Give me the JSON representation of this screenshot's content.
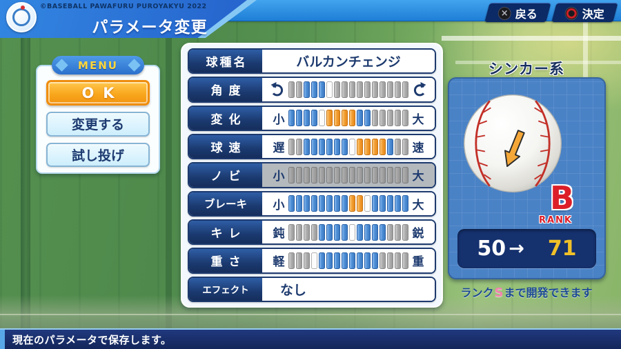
{
  "header": {
    "brand": "©BASEBALL PAWAFURU PUROYAKYU 2022",
    "title": "パラメータ変更",
    "buttons": [
      {
        "icon": "cross-button-icon",
        "label": "戻る"
      },
      {
        "icon": "circle-button-icon",
        "label": "決定"
      }
    ]
  },
  "menu": {
    "title": "MENU",
    "items": [
      {
        "label": "OK",
        "state": "selected"
      },
      {
        "label": "変更する",
        "state": "normal"
      },
      {
        "label": "試し投げ",
        "state": "normal"
      }
    ]
  },
  "parameters": {
    "rows": [
      {
        "label": "球種名",
        "type": "text",
        "value": "バルカンチェンジ",
        "align": "center"
      },
      {
        "label": "角度",
        "type": "gauge",
        "min_icon": "rotate-ccw-icon",
        "max_icon": "rotate-cw-icon",
        "segments": [
          "g",
          "g",
          "b",
          "b",
          "b",
          "w",
          "g",
          "g",
          "g",
          "g",
          "g",
          "g",
          "g",
          "g",
          "g",
          "g"
        ]
      },
      {
        "label": "変化",
        "type": "gauge",
        "min": "小",
        "max": "大",
        "segments": [
          "b",
          "b",
          "b",
          "b",
          "w",
          "o",
          "o",
          "o",
          "o",
          "b",
          "b",
          "g",
          "g",
          "g",
          "g",
          "g"
        ]
      },
      {
        "label": "球速",
        "type": "gauge",
        "min": "遅",
        "max": "速",
        "segments": [
          "g",
          "g",
          "b",
          "b",
          "b",
          "b",
          "b",
          "b",
          "w",
          "o",
          "o",
          "o",
          "o",
          "b",
          "g",
          "g"
        ]
      },
      {
        "label": "ノビ",
        "type": "gauge",
        "min": "小",
        "max": "大",
        "disabled": true,
        "segments": [
          "d",
          "d",
          "d",
          "d",
          "d",
          "d",
          "d",
          "d",
          "d",
          "d",
          "d",
          "d",
          "d",
          "d",
          "d",
          "d"
        ]
      },
      {
        "label": "ブレーキ",
        "type": "gauge",
        "min": "小",
        "max": "大",
        "segments": [
          "b",
          "b",
          "b",
          "b",
          "b",
          "b",
          "b",
          "b",
          "o",
          "o",
          "w",
          "b",
          "b",
          "b",
          "b",
          "b"
        ]
      },
      {
        "label": "キレ",
        "type": "gauge",
        "min": "鈍",
        "max": "鋭",
        "segments": [
          "g",
          "g",
          "g",
          "g",
          "b",
          "b",
          "b",
          "b",
          "w",
          "b",
          "b",
          "b",
          "b",
          "g",
          "g",
          "g"
        ]
      },
      {
        "label": "重さ",
        "type": "gauge",
        "min": "軽",
        "max": "重",
        "segments": [
          "g",
          "g",
          "g",
          "w",
          "b",
          "b",
          "b",
          "b",
          "b",
          "b",
          "b",
          "b",
          "g",
          "g",
          "g",
          "g"
        ]
      },
      {
        "label": "エフェクト",
        "type": "text",
        "value": "なし",
        "align": "left"
      }
    ]
  },
  "rank": {
    "category": "シンカー系",
    "letter": "B",
    "word": "RANK",
    "value_from": "50",
    "arrow": "→",
    "value_to": "71",
    "note_prefix": "ランク",
    "note_rank": "S",
    "note_suffix": "まで開発できます"
  },
  "footer": {
    "message": "現在のパラメータで保存します。"
  },
  "colors": {
    "bar_blue": "#4e8fd6",
    "bar_orange": "#f29d30",
    "bar_gray": "#ababab",
    "rank_red": "#dc1e28",
    "rank_pink": "#f483b0",
    "value_gold": "#f0c028",
    "accent_blue": "#2e8fe0"
  }
}
